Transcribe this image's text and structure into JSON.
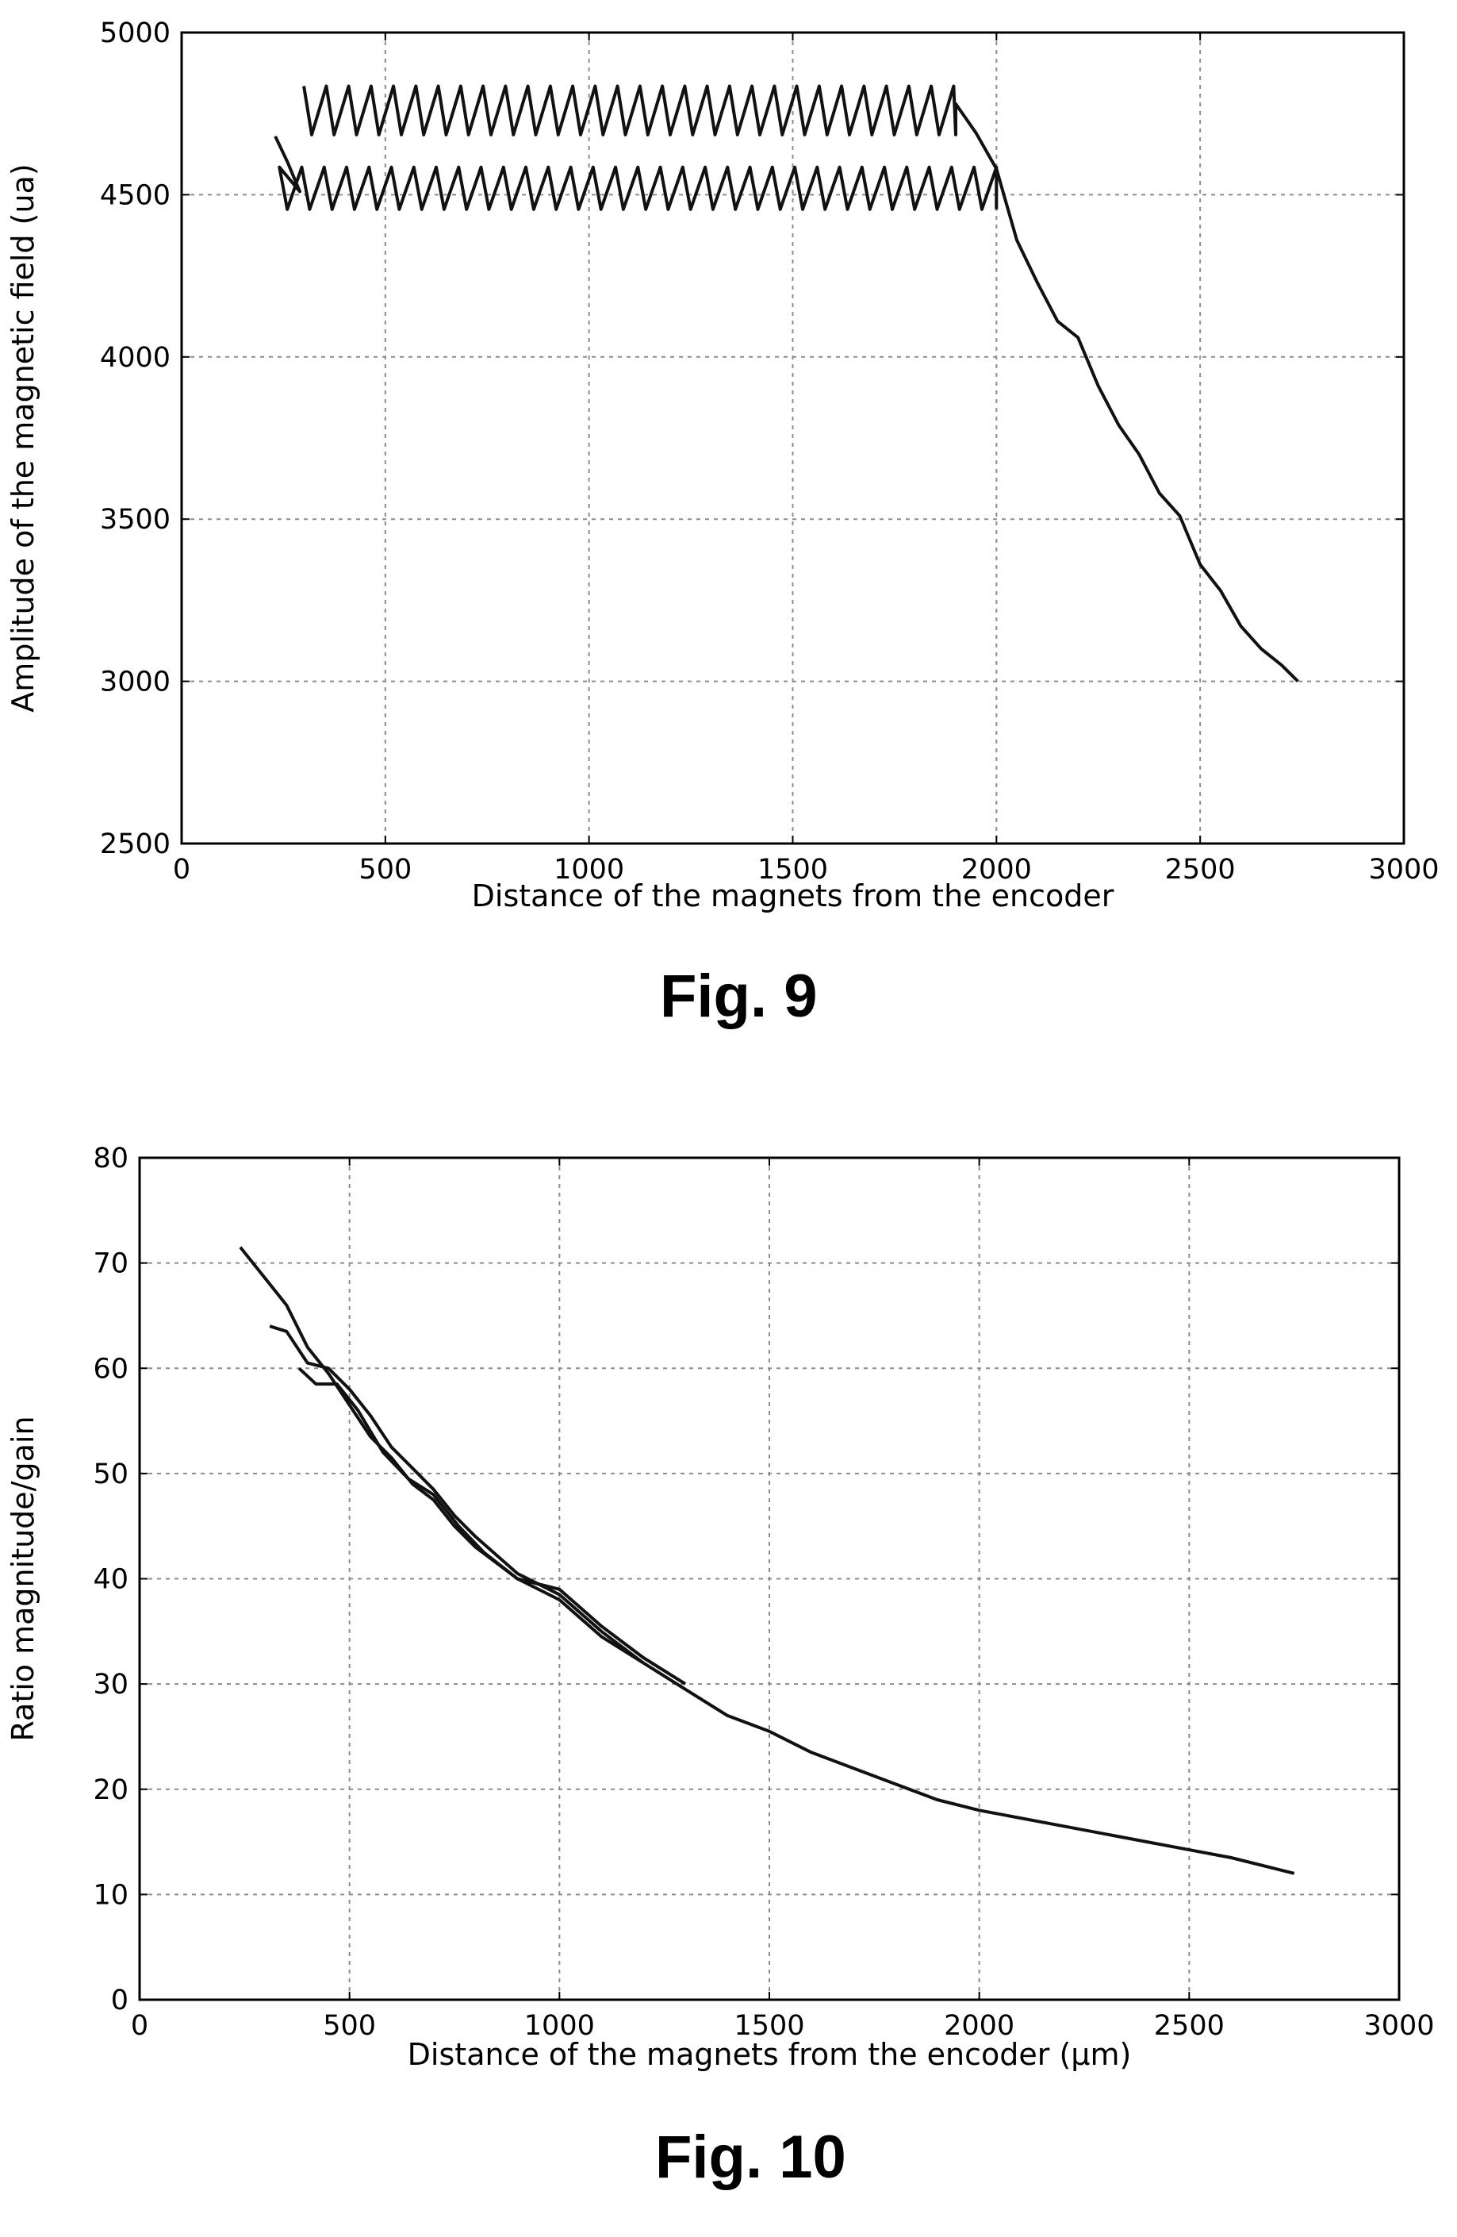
{
  "figures": [
    {
      "caption": "Fig. 9",
      "chart_data": {
        "type": "line",
        "title": "",
        "xlabel": "Distance of the magnets from the encoder",
        "ylabel": "Amplitude of the magnetic field (ua)",
        "xlim": [
          0,
          3000
        ],
        "ylim": [
          2500,
          5000
        ],
        "x_ticks": [
          0,
          500,
          1000,
          1500,
          2000,
          2500,
          3000
        ],
        "y_ticks": [
          2500,
          3000,
          3500,
          4000,
          4500,
          5000
        ],
        "grid": true,
        "legend": "none",
        "line_color": "#111111",
        "series": [
          {
            "sawtooth": {
              "x_start": 300,
              "x_end": 1900,
              "level": 4760,
              "amplitude": 75
            },
            "points": [
              [
                1900,
                4780
              ],
              [
                1950,
                4690
              ],
              [
                2000,
                4580
              ],
              [
                2050,
                4360
              ],
              [
                2100,
                4230
              ],
              [
                2150,
                4110
              ],
              [
                2200,
                4060
              ],
              [
                2250,
                3910
              ],
              [
                2300,
                3790
              ],
              [
                2350,
                3700
              ],
              [
                2400,
                3580
              ],
              [
                2450,
                3510
              ],
              [
                2500,
                3360
              ],
              [
                2550,
                3280
              ],
              [
                2600,
                3170
              ],
              [
                2650,
                3100
              ],
              [
                2700,
                3050
              ],
              [
                2740,
                3000
              ]
            ]
          },
          {
            "sawtooth": {
              "x_start": 240,
              "x_end": 2000,
              "level": 4520,
              "amplitude": 65
            },
            "points": [
              [
                230,
                4680
              ],
              [
                260,
                4600
              ],
              [
                290,
                4510
              ]
            ]
          }
        ]
      }
    },
    {
      "caption": "Fig. 10",
      "chart_data": {
        "type": "line",
        "title": "",
        "xlabel": "Distance of the magnets from the encoder (μm)",
        "ylabel": "Ratio magnitude/gain",
        "xlim": [
          0,
          3000
        ],
        "ylim": [
          0,
          80
        ],
        "x_ticks": [
          0,
          500,
          1000,
          1500,
          2000,
          2500,
          3000
        ],
        "y_ticks": [
          0,
          10,
          20,
          30,
          40,
          50,
          60,
          70,
          80
        ],
        "grid": true,
        "legend": "none",
        "line_color": "#111111",
        "series": [
          {
            "points": [
              [
                240,
                71.5
              ],
              [
                300,
                68.5
              ],
              [
                350,
                66
              ],
              [
                400,
                62
              ],
              [
                450,
                59.5
              ],
              [
                500,
                56.5
              ],
              [
                550,
                53.5
              ],
              [
                600,
                51.5
              ],
              [
                650,
                49
              ],
              [
                700,
                47.5
              ],
              [
                750,
                45
              ],
              [
                800,
                43
              ],
              [
                900,
                40
              ],
              [
                1000,
                38
              ],
              [
                1100,
                34.5
              ],
              [
                1200,
                32
              ],
              [
                1300,
                29.5
              ],
              [
                1400,
                27
              ],
              [
                1500,
                25.5
              ],
              [
                1600,
                23.5
              ],
              [
                1700,
                22
              ],
              [
                1800,
                20.5
              ],
              [
                1900,
                19
              ],
              [
                2000,
                18
              ],
              [
                2200,
                16.5
              ],
              [
                2400,
                15
              ],
              [
                2600,
                13.5
              ],
              [
                2750,
                12
              ]
            ]
          },
          {
            "points": [
              [
                310,
                64
              ],
              [
                350,
                63.5
              ],
              [
                400,
                60.5
              ],
              [
                450,
                60
              ],
              [
                500,
                58
              ],
              [
                550,
                55.5
              ],
              [
                600,
                52.5
              ],
              [
                650,
                50.5
              ],
              [
                700,
                48.5
              ],
              [
                750,
                46
              ],
              [
                800,
                44
              ],
              [
                900,
                40.5
              ],
              [
                1000,
                38.5
              ],
              [
                1100,
                35
              ],
              [
                1200,
                32
              ]
            ]
          },
          {
            "points": [
              [
                380,
                60
              ],
              [
                420,
                58.5
              ],
              [
                470,
                58.5
              ],
              [
                520,
                56
              ],
              [
                580,
                52
              ],
              [
                640,
                49.5
              ],
              [
                700,
                48
              ],
              [
                760,
                45
              ],
              [
                820,
                42.5
              ],
              [
                900,
                40
              ],
              [
                1000,
                39
              ],
              [
                1100,
                35.5
              ],
              [
                1200,
                32.5
              ],
              [
                1300,
                30
              ]
            ]
          }
        ]
      }
    }
  ]
}
